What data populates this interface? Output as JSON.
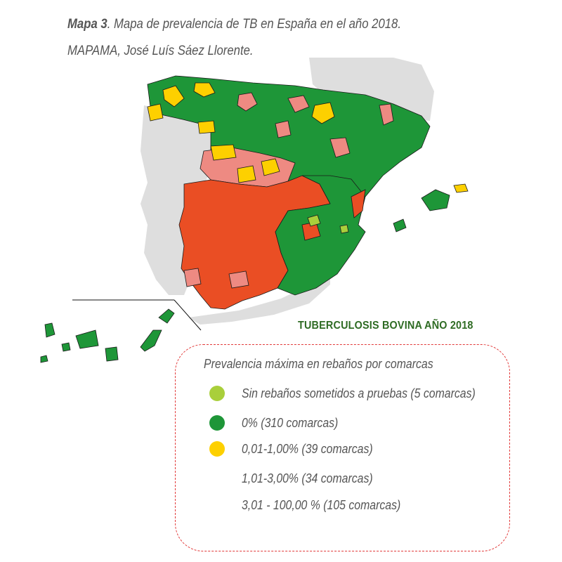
{
  "caption": {
    "label": "Mapa 3",
    "text": ". Mapa de prevalencia de TB en España en el año 2018.",
    "credit": "MAPAMA, José Luís Sáez Llorente."
  },
  "map": {
    "title": "TUBERCULOSIS BOVINA AÑO 2018",
    "colors": {
      "no_tests": "#a9cf3b",
      "zero": "#1e9638",
      "low": "#fdd000",
      "mid": "#ee8a82",
      "high": "#ea4e24",
      "neighbor": "#dedede",
      "border": "#1a1a1a"
    }
  },
  "legend": {
    "heading": "Prevalencia máxima en rebaños por comarcas",
    "items": [
      {
        "label": "Sin rebaños sometidos a pruebas  (5 comarcas)",
        "color": "#a9cf3b",
        "dot": true
      },
      {
        "label": "0% (310 comarcas)",
        "color": "#1e9638",
        "dot": true
      },
      {
        "label": "0,01-1,00% (39 comarcas)",
        "color": "#fdd000",
        "dot": true
      },
      {
        "label": "1,01-3,00% (34 comarcas)",
        "color": "#ee8a82",
        "dot": false
      },
      {
        "label": "3,01 - 100,00 % (105 comarcas)",
        "color": "#ea4e24",
        "dot": false
      }
    ]
  }
}
